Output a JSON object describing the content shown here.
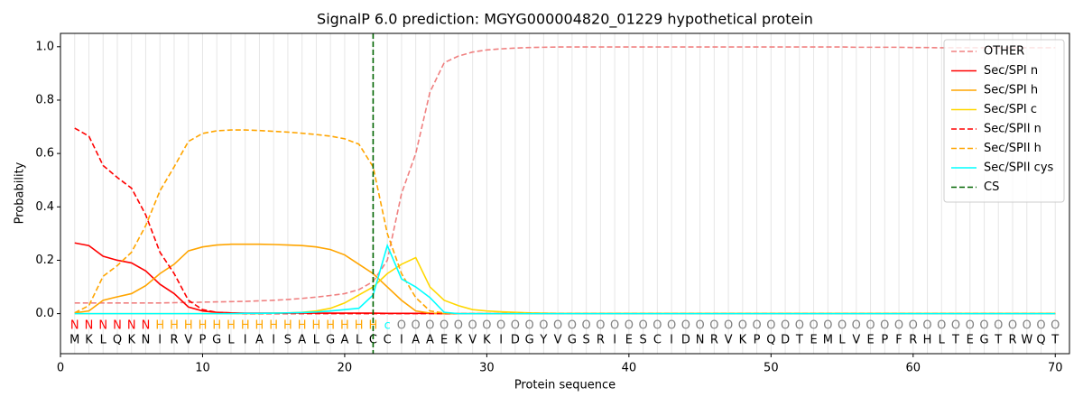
{
  "chart_data": {
    "type": "line",
    "title": "SignalP 6.0 prediction: MGYG000004820_01229 hypothetical protein",
    "x_label": "Protein sequence",
    "y_label": "Probability",
    "xlim": [
      0,
      71
    ],
    "ylim": [
      -0.15,
      1.05
    ],
    "xticks": [
      0,
      10,
      20,
      30,
      40,
      50,
      60,
      70
    ],
    "yticks": [
      {
        "value": 0,
        "label": "0.0"
      },
      {
        "value": 0.2,
        "label": "0.2"
      },
      {
        "value": 0.4,
        "label": "0.4"
      },
      {
        "value": 0.6,
        "label": "0.6"
      },
      {
        "value": 0.8,
        "label": "0.8"
      },
      {
        "value": 1,
        "label": "1.0"
      }
    ],
    "legend": "upper right",
    "x": [
      1,
      2,
      3,
      4,
      5,
      6,
      7,
      8,
      9,
      10,
      11,
      12,
      13,
      14,
      15,
      16,
      17,
      18,
      19,
      20,
      21,
      22,
      23,
      24,
      25,
      26,
      27,
      28,
      29,
      30,
      31,
      32,
      33,
      34,
      35,
      36,
      37,
      38,
      39,
      40,
      41,
      42,
      43,
      44,
      45,
      46,
      47,
      48,
      49,
      50,
      51,
      52,
      53,
      54,
      55,
      56,
      57,
      58,
      59,
      60,
      61,
      62,
      63,
      64,
      65,
      66,
      67,
      68,
      69,
      70
    ],
    "residues": [
      "M",
      "K",
      "L",
      "Q",
      "K",
      "N",
      "I",
      "R",
      "V",
      "P",
      "G",
      "L",
      "I",
      "A",
      "I",
      "S",
      "A",
      "L",
      "G",
      "A",
      "L",
      "C",
      "C",
      "I",
      "A",
      "A",
      "E",
      "K",
      "V",
      "K",
      "I",
      "D",
      "G",
      "Y",
      "V",
      "G",
      "S",
      "R",
      "I",
      "E",
      "S",
      "C",
      "I",
      "D",
      "N",
      "R",
      "V",
      "K",
      "P",
      "Q",
      "D",
      "T",
      "E",
      "M",
      "L",
      "V",
      "E",
      "P",
      "F",
      "R",
      "H",
      "L",
      "T",
      "E",
      "G",
      "T",
      "R",
      "W",
      "Q",
      "T"
    ],
    "regions": [
      "N",
      "N",
      "N",
      "N",
      "N",
      "N",
      "H",
      "H",
      "H",
      "H",
      "H",
      "H",
      "H",
      "H",
      "H",
      "H",
      "H",
      "H",
      "H",
      "H",
      "H",
      "H",
      "c",
      "O",
      "O",
      "O",
      "O",
      "O",
      "O",
      "O",
      "O",
      "O",
      "O",
      "O",
      "O",
      "O",
      "O",
      "O",
      "O",
      "O",
      "O",
      "O",
      "O",
      "O",
      "O",
      "O",
      "O",
      "O",
      "O",
      "O",
      "O",
      "O",
      "O",
      "O",
      "O",
      "O",
      "O",
      "O",
      "O",
      "O",
      "O",
      "O",
      "O",
      "O",
      "O",
      "O",
      "O",
      "O",
      "O",
      "O"
    ],
    "region_colors": {
      "N": "#ff0000",
      "H": "#ffa500",
      "c": "#00ffff",
      "O": "#808080"
    },
    "series": [
      {
        "name": "OTHER",
        "color": "#f08080",
        "style": "dashed",
        "values": [
          0.04,
          0.04,
          0.04,
          0.04,
          0.04,
          0.04,
          0.04,
          0.041,
          0.042,
          0.043,
          0.044,
          0.045,
          0.046,
          0.048,
          0.05,
          0.053,
          0.057,
          0.062,
          0.068,
          0.075,
          0.09,
          0.12,
          0.2,
          0.45,
          0.6,
          0.83,
          0.94,
          0.965,
          0.98,
          0.988,
          0.992,
          0.995,
          0.997,
          0.998,
          0.999,
          0.999,
          0.999,
          0.999,
          0.999,
          0.999,
          0.999,
          0.999,
          0.999,
          0.999,
          0.999,
          0.999,
          0.999,
          0.999,
          0.999,
          0.999,
          0.999,
          0.999,
          0.999,
          0.999,
          0.999,
          0.998,
          0.998,
          0.998,
          0.998,
          0.997,
          0.997,
          0.996,
          0.996,
          0.996,
          0.996,
          0.996,
          0.996,
          0.996,
          0.996,
          0.996
        ]
      },
      {
        "name": "Sec/SPI n",
        "color": "#ff0000",
        "style": "solid",
        "values": [
          0.265,
          0.255,
          0.215,
          0.2,
          0.19,
          0.16,
          0.11,
          0.075,
          0.025,
          0.01,
          0.005,
          0.003,
          0.002,
          0.002,
          0.002,
          0.002,
          0.002,
          0.002,
          0.002,
          0.002,
          0.002,
          0.002,
          0.001,
          0.001,
          0.001,
          0.001,
          0,
          0,
          0,
          0,
          0,
          0,
          0,
          0,
          0,
          0,
          0,
          0,
          0,
          0,
          0,
          0,
          0,
          0,
          0,
          0,
          0,
          0,
          0,
          0,
          0,
          0,
          0,
          0,
          0,
          0,
          0,
          0,
          0,
          0,
          0,
          0,
          0,
          0,
          0,
          0,
          0,
          0,
          0,
          0
        ]
      },
      {
        "name": "Sec/SPI h",
        "color": "#ffa500",
        "style": "solid",
        "values": [
          0.003,
          0.01,
          0.05,
          0.063,
          0.075,
          0.105,
          0.15,
          0.185,
          0.235,
          0.25,
          0.257,
          0.26,
          0.26,
          0.26,
          0.259,
          0.257,
          0.255,
          0.25,
          0.24,
          0.22,
          0.185,
          0.15,
          0.1,
          0.05,
          0.01,
          0.002,
          0,
          0,
          0,
          0,
          0,
          0,
          0,
          0,
          0,
          0,
          0,
          0,
          0,
          0,
          0,
          0,
          0,
          0,
          0,
          0,
          0,
          0,
          0,
          0,
          0,
          0,
          0,
          0,
          0,
          0,
          0,
          0,
          0,
          0,
          0,
          0,
          0,
          0,
          0,
          0,
          0,
          0,
          0,
          0
        ]
      },
      {
        "name": "Sec/SPI c",
        "color": "#ffd700",
        "style": "solid",
        "values": [
          0,
          0,
          0,
          0,
          0,
          0,
          0,
          0,
          0,
          0,
          0,
          0,
          0,
          0,
          0.002,
          0.003,
          0.005,
          0.01,
          0.02,
          0.04,
          0.07,
          0.1,
          0.15,
          0.185,
          0.21,
          0.1,
          0.05,
          0.03,
          0.015,
          0.01,
          0.007,
          0.005,
          0.003,
          0.002,
          0.001,
          0.001,
          0.001,
          0.001,
          0.001,
          0.001,
          0.001,
          0.001,
          0.001,
          0.001,
          0.001,
          0.001,
          0.001,
          0.001,
          0.001,
          0.001,
          0.001,
          0.001,
          0.001,
          0.001,
          0.001,
          0.001,
          0.001,
          0.001,
          0.001,
          0.001,
          0.001,
          0.001,
          0.001,
          0.001,
          0.001,
          0.001,
          0.001,
          0.001,
          0.001,
          0.001
        ]
      },
      {
        "name": "Sec/SPII n",
        "color": "#ff0000",
        "style": "dashed",
        "values": [
          0.695,
          0.665,
          0.555,
          0.51,
          0.47,
          0.37,
          0.23,
          0.15,
          0.05,
          0.015,
          0.005,
          0.002,
          0,
          0,
          0,
          0,
          0,
          0,
          0,
          0,
          0,
          0,
          0,
          0,
          0,
          0,
          0,
          0,
          0,
          0,
          0,
          0,
          0,
          0,
          0,
          0,
          0,
          0,
          0,
          0,
          0,
          0,
          0,
          0,
          0,
          0,
          0,
          0,
          0,
          0,
          0,
          0,
          0,
          0,
          0,
          0,
          0,
          0,
          0,
          0,
          0,
          0,
          0,
          0,
          0,
          0,
          0,
          0,
          0,
          0
        ]
      },
      {
        "name": "Sec/SPII h",
        "color": "#ffa500",
        "style": "dashed",
        "values": [
          0.003,
          0.03,
          0.14,
          0.18,
          0.23,
          0.33,
          0.46,
          0.55,
          0.645,
          0.675,
          0.685,
          0.688,
          0.688,
          0.686,
          0.683,
          0.68,
          0.676,
          0.671,
          0.665,
          0.655,
          0.635,
          0.55,
          0.3,
          0.15,
          0.06,
          0.01,
          0.002,
          0,
          0,
          0,
          0,
          0,
          0,
          0,
          0,
          0,
          0,
          0,
          0,
          0,
          0,
          0,
          0,
          0,
          0,
          0,
          0,
          0,
          0,
          0,
          0,
          0,
          0,
          0,
          0,
          0,
          0,
          0,
          0,
          0,
          0,
          0,
          0,
          0,
          0,
          0,
          0,
          0,
          0,
          0
        ]
      },
      {
        "name": "Sec/SPII cys",
        "color": "#00ffff",
        "style": "solid",
        "values": [
          0,
          0,
          0,
          0,
          0,
          0,
          0,
          0,
          0,
          0,
          0,
          0,
          0.001,
          0.001,
          0.002,
          0.003,
          0.004,
          0.006,
          0.01,
          0.015,
          0.02,
          0.07,
          0.255,
          0.13,
          0.1,
          0.06,
          0.005,
          0,
          0,
          0,
          0,
          0,
          0,
          0,
          0,
          0,
          0,
          0,
          0,
          0,
          0,
          0,
          0,
          0,
          0,
          0,
          0,
          0,
          0,
          0,
          0,
          0,
          0,
          0,
          0,
          0,
          0,
          0,
          0,
          0,
          0,
          0,
          0,
          0,
          0,
          0,
          0,
          0,
          0,
          0
        ]
      }
    ],
    "cs": {
      "name": "CS",
      "x": 22,
      "color": "#006400",
      "style": "dashed"
    }
  }
}
